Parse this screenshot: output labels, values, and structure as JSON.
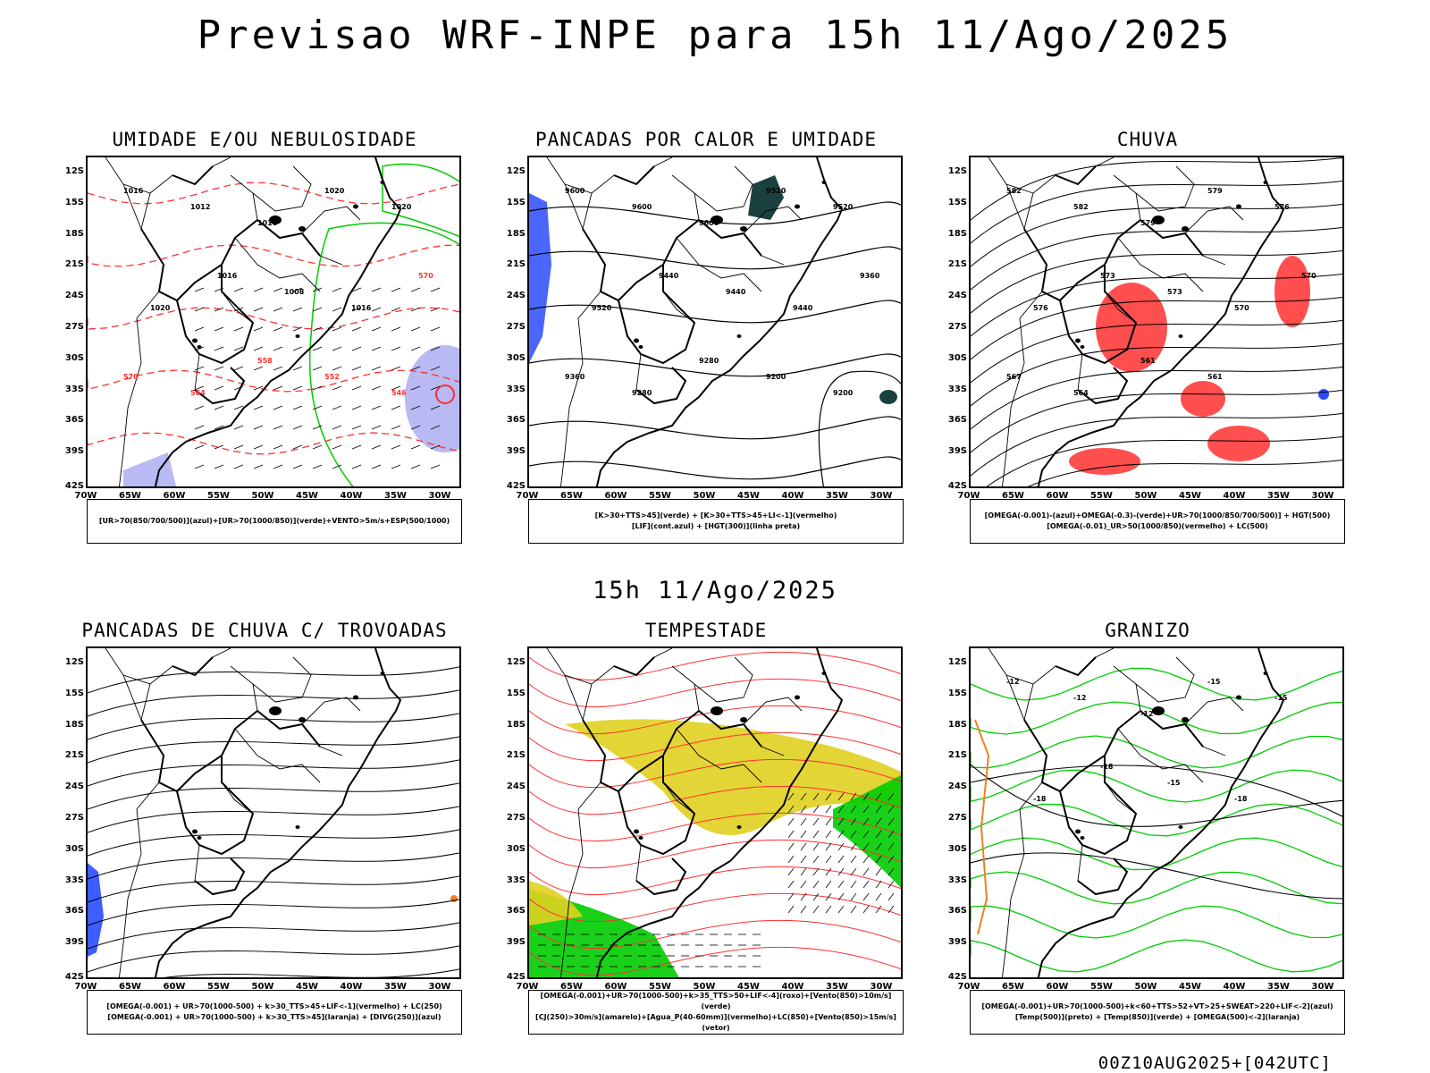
{
  "title": "Previsao WRF-INPE  para 15h 11/Ago/2025",
  "mid_title": "15h 11/Ago/2025",
  "footer": "00Z10AUG2025+[042UTC]",
  "lat_labels": [
    "12S",
    "15S",
    "18S",
    "21S",
    "24S",
    "27S",
    "30S",
    "33S",
    "36S",
    "39S",
    "42S"
  ],
  "lon_labels": [
    "70W",
    "65W",
    "60W",
    "55W",
    "50W",
    "45W",
    "40W",
    "35W",
    "30W"
  ],
  "colors": {
    "red": "#ff3030",
    "green": "#00cc00",
    "blue": "#2a4bff",
    "lavender": "#a8a8f0",
    "yellow": "#e0d020",
    "dark_teal": "#1a4040",
    "orange": "#f08020"
  },
  "panels": [
    {
      "title": "UMIDADE E/OU NEBULOSIDADE",
      "legend": [
        "[UR>70(850/700/500)](azul)+[UR>70(1000/850)](verde)+VENTO>5m/s+ESP(500/1000)"
      ],
      "contour_labels": [
        "1016",
        "1012",
        "1016",
        "1020",
        "1020",
        "1020",
        "1016",
        "1008",
        "1016",
        "570",
        "570",
        "564",
        "558",
        "552",
        "546"
      ]
    },
    {
      "title": "PANCADAS POR CALOR E UMIDADE",
      "legend": [
        "[K>30+TTS>45](verde) + [K>30+TTS>45+LI<-1](vermelho)",
        "[LIF](cont.azul) + [HGT(300)](linha preta)"
      ],
      "contour_labels": [
        "9600",
        "9600",
        "9600",
        "9520",
        "9520",
        "9520",
        "9440",
        "9440",
        "9440",
        "9360",
        "9360",
        "9280",
        "9280",
        "9200",
        "9200"
      ]
    },
    {
      "title": "CHUVA",
      "legend": [
        "[OMEGA(-0.001)-(azul)+OMEGA(-0.3)-(verde)+UR>70(1000/850/700/500)] + HGT(500)",
        "[OMEGA(-0.01)_UR>50(1000/850)(vermelho) + LC(500)"
      ],
      "contour_labels": [
        "582",
        "582",
        "579",
        "579",
        "576",
        "576",
        "573",
        "573",
        "570",
        "570",
        "567",
        "564",
        "561",
        "561"
      ]
    },
    {
      "title": "PANCADAS DE CHUVA C/ TROVOADAS",
      "legend": [
        "[OMEGA(-0.001) + UR>70(1000-500) + k>30_TTS>45+LIF<-1](vermelho) + LC(250)",
        "[OMEGA(-0.001) + UR>70(1000-500) + k>30_TTS>45](laranja) + [DIVG(250)](azul)"
      ],
      "contour_labels": []
    },
    {
      "title": "TEMPESTADE",
      "legend": [
        "[OMEGA(-0.001)+UR>70(1000-500)+k>35_TTS>50+LIF<-4](roxo)+[Vento(850)>10m/s](verde)",
        "[CJ(250)>30m/s](amarelo)+[Agua_P(40-60mm)](vermelho)+LC(850)+[Vento(850)>15m/s](vetor)"
      ],
      "contour_labels": []
    },
    {
      "title": "GRANIZO",
      "legend": [
        "[OMEGA(-0.001)+UR>70(1000-500)+k<60+TTS>52+VT>25+SWEAT>220+LIF<-2](azul)",
        "[Temp(500)](preto) + [Temp(850)](verde) + [OMEGA(500)<-2](laranja)"
      ],
      "contour_labels": [
        "-12",
        "-12",
        "-12",
        "-15",
        "-15",
        "-18",
        "-18",
        "-15",
        "-18"
      ]
    }
  ]
}
